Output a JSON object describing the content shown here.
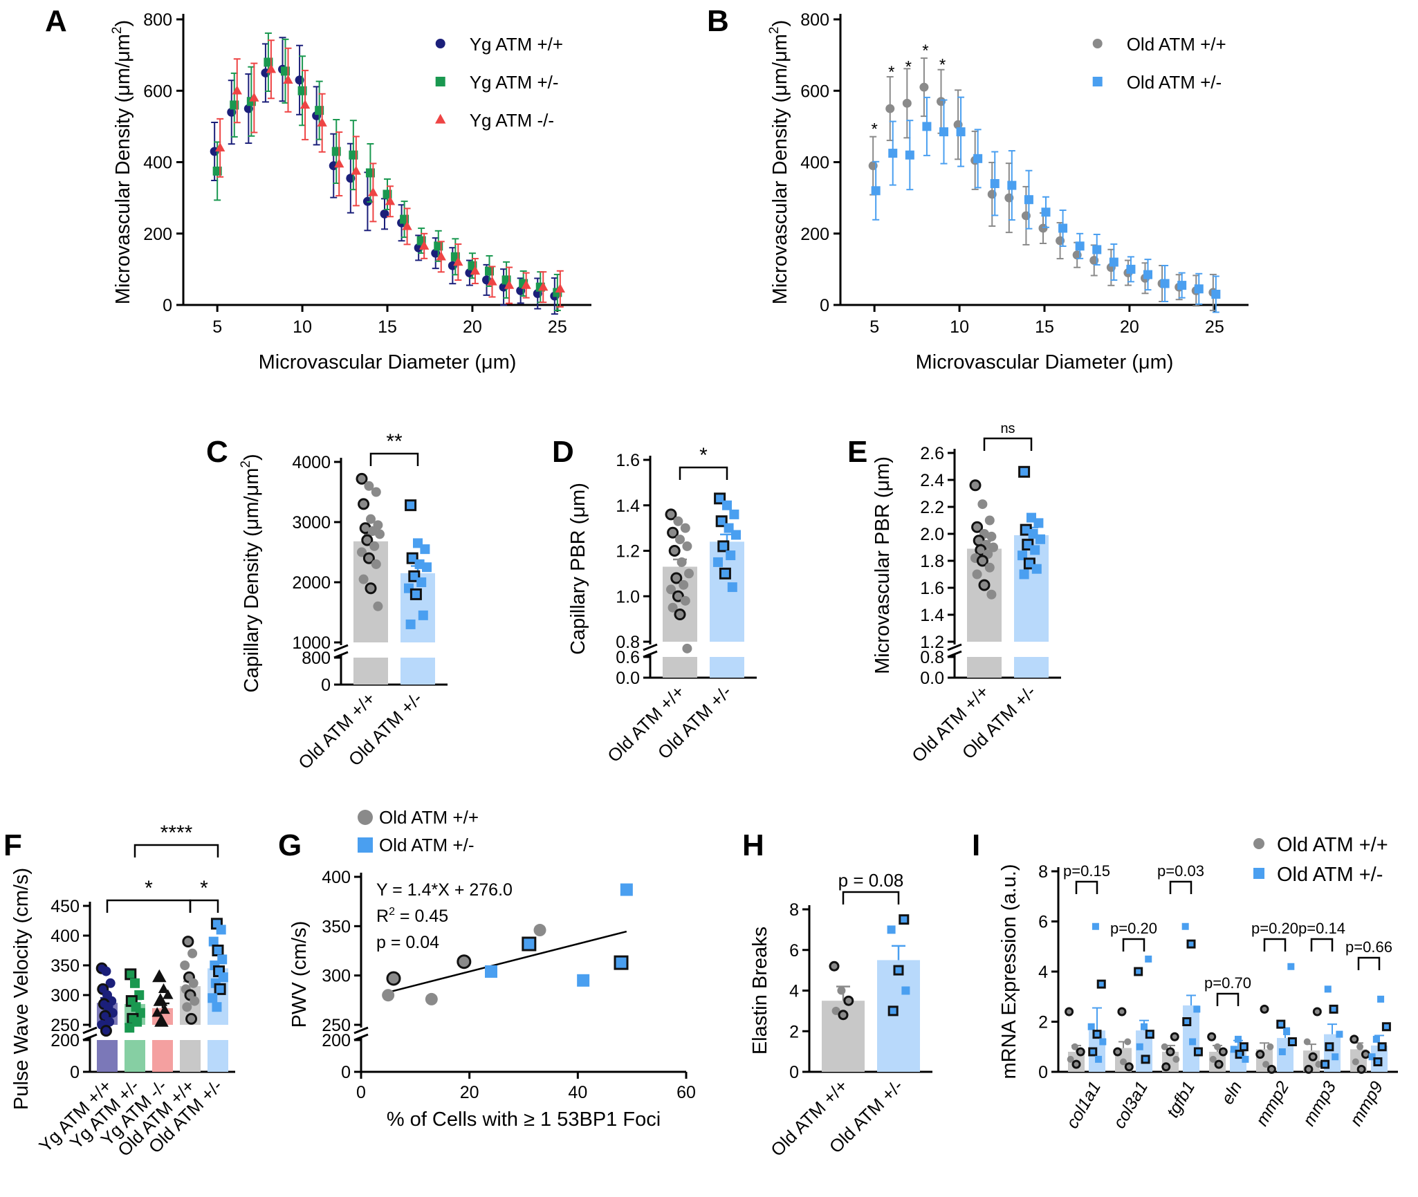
{
  "colors": {
    "yg_wt": "#1b1f7a",
    "yg_het": "#1a9850",
    "yg_ko": "#ee4444",
    "old_wt": "#8a8a8a",
    "old_het": "#4a9ff0",
    "bar_wt": "#c8c8c8",
    "bar_het": "#b8d9fb"
  },
  "panels": {
    "A": "A",
    "B": "B",
    "C": "C",
    "D": "D",
    "E": "E",
    "F": "F",
    "G": "G",
    "H": "H",
    "I": "I"
  },
  "chart_data": [
    {
      "id": "A",
      "type": "scatter",
      "xlabel": "Microvascular Diameter (μm)",
      "ylabel": "Microvascular Density (μm/μm",
      "ylabel_sup": "2",
      "ylabel_tail": ")",
      "xlim": [
        3,
        27
      ],
      "ylim": [
        0,
        800
      ],
      "xticks": [
        5,
        10,
        15,
        20,
        25
      ],
      "yticks": [
        0,
        200,
        400,
        600,
        800
      ],
      "legend": "top-right",
      "x": [
        5,
        6,
        7,
        8,
        9,
        10,
        11,
        12,
        13,
        14,
        15,
        16,
        17,
        18,
        19,
        20,
        21,
        22,
        23,
        24,
        25
      ],
      "series": [
        {
          "name": "Yg ATM +/+",
          "marker": "circle",
          "color": "#1b1f7a",
          "values": [
            430,
            540,
            550,
            650,
            660,
            630,
            530,
            390,
            355,
            290,
            255,
            230,
            160,
            145,
            110,
            90,
            70,
            50,
            40,
            32,
            25
          ]
        },
        {
          "name": "Yg ATM +/-",
          "marker": "square",
          "color": "#1a9850",
          "values": [
            375,
            560,
            570,
            680,
            655,
            600,
            545,
            430,
            420,
            370,
            310,
            240,
            180,
            165,
            135,
            110,
            95,
            70,
            60,
            50,
            35
          ]
        },
        {
          "name": "Yg ATM -/-",
          "marker": "triangle",
          "color": "#ee4444",
          "values": [
            440,
            600,
            580,
            660,
            630,
            560,
            510,
            395,
            375,
            315,
            290,
            220,
            165,
            135,
            120,
            95,
            65,
            55,
            55,
            50,
            45
          ]
        }
      ]
    },
    {
      "id": "B",
      "type": "scatter",
      "xlabel": "Microvascular Diameter (μm)",
      "ylabel": "Microvascular Density (μm/μm",
      "ylabel_sup": "2",
      "ylabel_tail": ")",
      "xlim": [
        3,
        27
      ],
      "ylim": [
        0,
        800
      ],
      "xticks": [
        5,
        10,
        15,
        20,
        25
      ],
      "yticks": [
        0,
        200,
        400,
        600,
        800
      ],
      "legend": "top-right",
      "x": [
        5,
        6,
        7,
        8,
        9,
        10,
        11,
        12,
        13,
        14,
        15,
        16,
        17,
        18,
        19,
        20,
        21,
        22,
        23,
        24,
        25
      ],
      "series": [
        {
          "name": "Old ATM +/+",
          "marker": "circle",
          "color": "#8a8a8a",
          "values": [
            390,
            550,
            565,
            610,
            570,
            505,
            405,
            310,
            300,
            250,
            215,
            180,
            140,
            125,
            105,
            90,
            75,
            60,
            50,
            40,
            35
          ]
        },
        {
          "name": "Old ATM +/-",
          "marker": "square",
          "color": "#4a9ff0",
          "values": [
            320,
            425,
            420,
            500,
            485,
            485,
            410,
            340,
            335,
            295,
            260,
            215,
            165,
            155,
            120,
            100,
            85,
            60,
            55,
            45,
            30
          ]
        }
      ],
      "annotations": [
        "*",
        "*",
        "*",
        "*",
        "*"
      ],
      "annotation_x": [
        5,
        6,
        7,
        8,
        9
      ]
    },
    {
      "id": "C",
      "type": "bar",
      "ylabel": "Capillary Density (μm/μm",
      "ylabel_sup": "2",
      "ylabel_tail": ")",
      "categories": [
        "Old ATM +/+",
        "Old ATM +/-"
      ],
      "values": [
        2680,
        2150
      ],
      "yticks_upper": [
        1000,
        2000,
        3000,
        4000
      ],
      "yticks_lower": [
        0,
        800
      ],
      "significance": "**",
      "points": [
        [
          3720,
          3600,
          3500,
          3300,
          3050,
          2950,
          2900,
          2850,
          2800,
          2700,
          2600,
          2500,
          2400,
          2300,
          2050,
          1900,
          1600
        ],
        [
          3280,
          2650,
          2550,
          2400,
          2300,
          2250,
          2100,
          2000,
          1900,
          1800,
          1450,
          1300
        ]
      ]
    },
    {
      "id": "D",
      "type": "bar",
      "ylabel": "Capillary PBR (μm)",
      "categories": [
        "Old ATM +/+",
        "Old ATM +/-"
      ],
      "values": [
        1.13,
        1.24
      ],
      "yticks_upper": [
        0.8,
        1.0,
        1.2,
        1.4,
        1.6
      ],
      "yticks_lower": [
        0.0,
        0.6
      ],
      "significance": "*",
      "points": [
        [
          1.36,
          1.33,
          1.3,
          1.28,
          1.25,
          1.22,
          1.2,
          1.15,
          1.1,
          1.08,
          1.05,
          1.03,
          1.0,
          0.98,
          0.95,
          0.92,
          0.77
        ],
        [
          1.43,
          1.4,
          1.36,
          1.33,
          1.3,
          1.27,
          1.22,
          1.18,
          1.15,
          1.1,
          1.04
        ]
      ]
    },
    {
      "id": "E",
      "type": "bar",
      "ylabel": "Microvascular PBR (μm)",
      "categories": [
        "Old ATM +/+",
        "Old ATM +/-"
      ],
      "values": [
        1.89,
        1.99
      ],
      "yticks_upper": [
        1.2,
        1.4,
        1.6,
        1.8,
        2.0,
        2.2,
        2.4,
        2.6
      ],
      "yticks_lower": [
        0.0,
        0.8
      ],
      "significance": "ns",
      "points": [
        [
          2.36,
          2.22,
          2.1,
          2.05,
          2.0,
          1.98,
          1.95,
          1.92,
          1.9,
          1.88,
          1.85,
          1.82,
          1.8,
          1.75,
          1.7,
          1.62,
          1.55
        ],
        [
          2.46,
          2.12,
          2.08,
          2.03,
          2.0,
          1.96,
          1.92,
          1.88,
          1.84,
          1.78,
          1.74,
          1.7
        ]
      ]
    },
    {
      "id": "F",
      "type": "bar",
      "ylabel": "Pulse Wave Velocity (cm/s)",
      "categories": [
        "Yg ATM +/+",
        "Yg ATM +/-",
        "Yg ATM -/-",
        "Old ATM +/+",
        "Old ATM +/-"
      ],
      "values": [
        287,
        285,
        278,
        315,
        345
      ],
      "yticks_upper": [
        250,
        300,
        350,
        400,
        450
      ],
      "yticks_lower": [
        0,
        200
      ],
      "significance": [
        "****",
        "*",
        "*"
      ],
      "points": [
        [
          345,
          340,
          320,
          310,
          300,
          290,
          285,
          280,
          270,
          265,
          255,
          250,
          240
        ],
        [
          335,
          320,
          300,
          290,
          280,
          270,
          260,
          255,
          245
        ],
        [
          330,
          310,
          300,
          290,
          275,
          270,
          255
        ],
        [
          390,
          370,
          350,
          330,
          320,
          310,
          300,
          290,
          280,
          260
        ],
        [
          420,
          410,
          390,
          375,
          360,
          350,
          340,
          330,
          320,
          310,
          295,
          280
        ]
      ]
    },
    {
      "id": "G",
      "type": "scatter",
      "xlabel": "% of Cells with ≥ 1 53BP1 Foci",
      "ylabel": "PWV (cm/s)",
      "xlim": [
        0,
        60
      ],
      "xticks": [
        0,
        20,
        40,
        60
      ],
      "yticks_upper": [
        250,
        300,
        350,
        400
      ],
      "yticks_lower": [
        0,
        200
      ],
      "legend": "top-left",
      "series": [
        {
          "name": "Old ATM +/+",
          "marker": "circle",
          "color": "#8a8a8a",
          "x": [
            5,
            6,
            13,
            19,
            33
          ],
          "y": [
            280,
            297,
            276,
            314,
            346
          ]
        },
        {
          "name": "Old ATM +/-",
          "marker": "square",
          "color": "#4a9ff0",
          "x": [
            24,
            31,
            41,
            48,
            49
          ],
          "y": [
            304,
            332,
            295,
            313,
            387
          ]
        }
      ],
      "annotations": [
        "Y = 1.4*X + 276.0",
        "R",
        "2",
        "= 0.45",
        "p = 0.04"
      ],
      "fit": {
        "slope": 1.4,
        "intercept": 276.0,
        "x_range": [
          5,
          49
        ]
      }
    },
    {
      "id": "H",
      "type": "bar",
      "ylabel": "Elastin Breaks",
      "categories": [
        "Old ATM +/+",
        "Old ATM +/-"
      ],
      "values": [
        3.5,
        5.5
      ],
      "yticks": [
        0,
        2,
        4,
        6,
        8
      ],
      "significance": "p = 0.08",
      "points": [
        [
          5.2,
          4.0,
          3.5,
          3.0,
          2.8
        ],
        [
          7.5,
          7.0,
          5.0,
          4.0,
          3.0
        ]
      ]
    },
    {
      "id": "I",
      "type": "bar",
      "ylabel": "mRNA Expression (a.u.)",
      "categories": [
        "col1a1",
        "col3a1",
        "tgfb1",
        "eln",
        "mmp2",
        "mmp3",
        "mmp9"
      ],
      "series": [
        {
          "name": "Old ATM +/+",
          "color": "#8a8a8a",
          "values": [
            0.8,
            0.95,
            0.8,
            0.8,
            0.9,
            0.85,
            0.9
          ]
        },
        {
          "name": "Old ATM +/-",
          "color": "#4a9ff0",
          "values": [
            1.65,
            1.65,
            2.65,
            0.85,
            1.35,
            1.5,
            1.05
          ]
        }
      ],
      "yticks": [
        0,
        2,
        4,
        6,
        8
      ],
      "legend": "top-right",
      "pvalues": [
        "p=0.15",
        "p=0.20",
        "p=0.03",
        "p=0.70",
        "p=0.20",
        "p=0.14",
        "p=0.66"
      ],
      "points_wt": [
        [
          2.4,
          1.0,
          0.8,
          0.5,
          0.3
        ],
        [
          2.4,
          1.2,
          0.8,
          0.4,
          0.2
        ],
        [
          1.4,
          1.0,
          0.8,
          0.5,
          0.2
        ],
        [
          1.4,
          1.0,
          0.8,
          0.5,
          0.3
        ],
        [
          2.5,
          1.0,
          0.7,
          0.3,
          0.1
        ],
        [
          2.4,
          1.2,
          0.6,
          0.3,
          0.1
        ],
        [
          1.3,
          1.0,
          0.7,
          0.4,
          0.1
        ]
      ],
      "points_het": [
        [
          5.8,
          3.5,
          1.8,
          1.5,
          1.2,
          0.8,
          0.5
        ],
        [
          4.5,
          4.0,
          1.8,
          1.5,
          1.0,
          0.5
        ],
        [
          5.8,
          5.1,
          2.5,
          2.0,
          1.2,
          0.8
        ],
        [
          1.3,
          1.0,
          0.9,
          0.7,
          0.5
        ],
        [
          4.2,
          1.9,
          1.6,
          1.2,
          0.8
        ],
        [
          3.3,
          2.5,
          1.5,
          1.0,
          0.6,
          0.3
        ],
        [
          2.9,
          1.8,
          1.3,
          1.0,
          0.6,
          0.4
        ]
      ]
    }
  ]
}
